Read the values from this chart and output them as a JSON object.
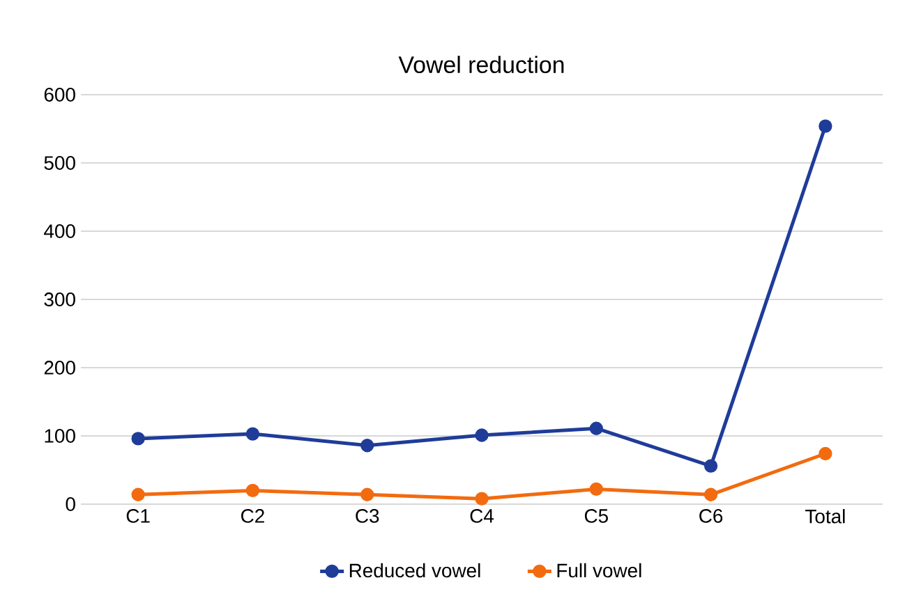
{
  "chart_data": {
    "type": "line",
    "title": "Vowel reduction",
    "categories": [
      "C1",
      "C2",
      "C3",
      "C4",
      "C5",
      "C6",
      "Total"
    ],
    "series": [
      {
        "name": "Reduced vowel",
        "color": "#1f3c99",
        "values": [
          96,
          103,
          86,
          101,
          111,
          56,
          554
        ]
      },
      {
        "name": "Full vowel",
        "color": "#f26b0f",
        "values": [
          14,
          20,
          14,
          8,
          22,
          14,
          74
        ]
      }
    ],
    "ylim": [
      0,
      600
    ],
    "yticks": [
      0,
      100,
      200,
      300,
      400,
      500,
      600
    ],
    "grid": "y",
    "legend": "bottom",
    "marker": "circle",
    "line_style": "solid"
  }
}
